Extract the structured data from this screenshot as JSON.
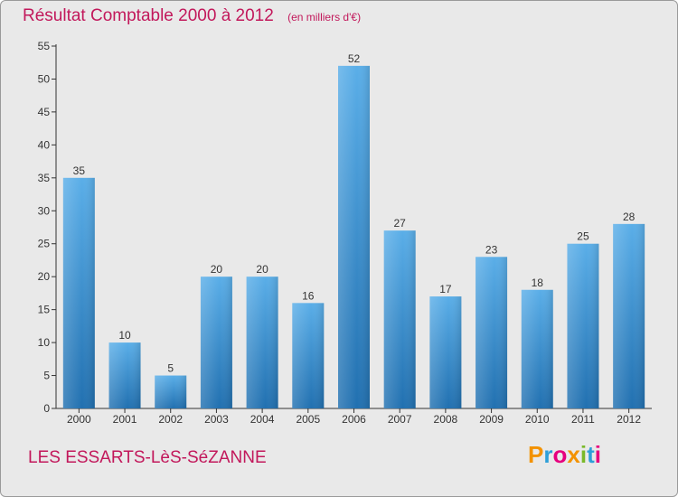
{
  "header": {
    "title": "Résultat Comptable 2000 à 2012",
    "unit": "(en milliers d'€)"
  },
  "footer": {
    "place": "LES ESSARTS-LèS-SéZANNE",
    "logo_letters": [
      "P",
      "r",
      "o",
      "x",
      "i",
      "t",
      "i"
    ],
    "logo_colors": [
      "#f39200",
      "#2e9fd8",
      "#e6007e",
      "#f39200",
      "#7ab929",
      "#2e9fd8",
      "#e6007e"
    ]
  },
  "colors": {
    "title": "#c2185b",
    "bar_top": "#5aaee8",
    "bar_bottom": "#2170b0",
    "background": "#e9e9e9"
  },
  "chart_data": {
    "type": "bar",
    "title": "Résultat Comptable 2000 à 2012",
    "subtitle": "(en milliers d'€)",
    "categories": [
      "2000",
      "2001",
      "2002",
      "2003",
      "2004",
      "2005",
      "2006",
      "2007",
      "2008",
      "2009",
      "2010",
      "2011",
      "2012"
    ],
    "values": [
      35,
      10,
      5,
      20,
      20,
      16,
      52,
      27,
      17,
      23,
      18,
      25,
      28
    ],
    "yticks": [
      0,
      5,
      10,
      15,
      20,
      25,
      30,
      35,
      40,
      45,
      50,
      55
    ],
    "ylim": [
      0,
      55
    ],
    "grid": false,
    "data_labels": true
  }
}
